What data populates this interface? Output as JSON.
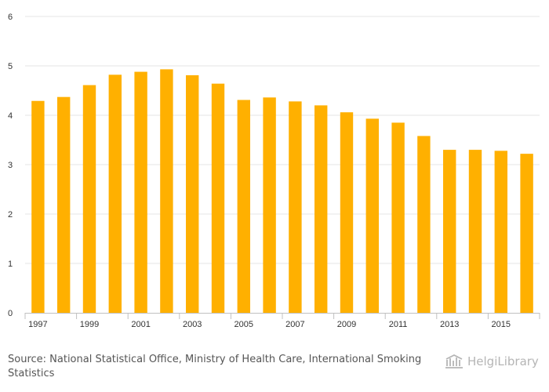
{
  "chart_data": {
    "type": "bar",
    "title": "",
    "xlabel": "",
    "ylabel": "",
    "x": [
      1997,
      1998,
      1999,
      2000,
      2001,
      2002,
      2003,
      2004,
      2005,
      2006,
      2007,
      2008,
      2009,
      2010,
      2011,
      2012,
      2013,
      2014,
      2015,
      2016
    ],
    "x_tick_labels": [
      "1997",
      "1999",
      "2001",
      "2003",
      "2005",
      "2007",
      "2009",
      "2011",
      "2013",
      "2015"
    ],
    "values": [
      4.29,
      4.37,
      4.61,
      4.82,
      4.88,
      4.93,
      4.81,
      4.64,
      4.31,
      4.36,
      4.28,
      4.2,
      4.06,
      3.93,
      3.85,
      3.58,
      3.3,
      3.3,
      3.28,
      3.22
    ],
    "y_ticks": [
      "0",
      "1",
      "2",
      "3",
      "4",
      "5",
      "6"
    ],
    "ylim": [
      0,
      6
    ],
    "grid": true,
    "bar_color": "#FFB000"
  },
  "source_text": "Source: National Statistical Office, Ministry of Health Care, International Smoking Statistics",
  "logo_text": "HelgiLibrary"
}
